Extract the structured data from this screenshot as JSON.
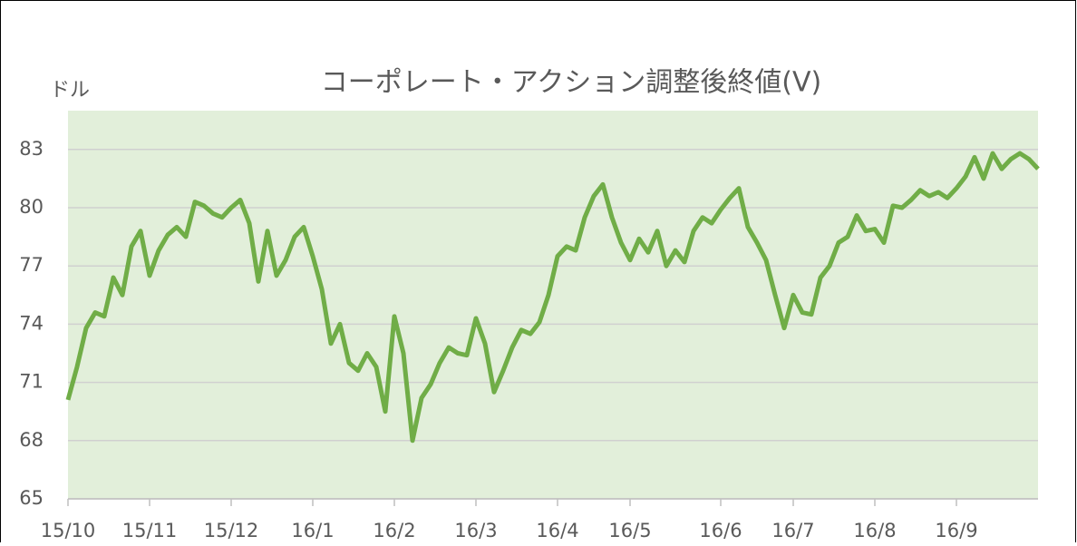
{
  "chart_data": {
    "type": "line",
    "title": "コーポレート・アクション調整後終値(V)",
    "ylabel": "ドル",
    "categories": [
      "15/10",
      null,
      null,
      null,
      null,
      null,
      null,
      null,
      null,
      "15/11",
      null,
      null,
      null,
      null,
      null,
      null,
      null,
      null,
      "15/12",
      null,
      null,
      null,
      null,
      null,
      null,
      null,
      null,
      "16/1",
      null,
      null,
      null,
      null,
      null,
      null,
      null,
      null,
      "16/2",
      null,
      null,
      null,
      null,
      null,
      null,
      null,
      null,
      "16/3",
      null,
      null,
      null,
      null,
      null,
      null,
      null,
      null,
      "16/4",
      null,
      null,
      null,
      null,
      null,
      null,
      null,
      "16/5",
      null,
      null,
      null,
      null,
      null,
      null,
      null,
      null,
      null,
      "16/6",
      null,
      null,
      null,
      null,
      null,
      null,
      null,
      "16/7",
      null,
      null,
      null,
      null,
      null,
      null,
      null,
      null,
      "16/8",
      null,
      null,
      null,
      null,
      null,
      null,
      null,
      null,
      "16/9",
      null,
      null,
      null,
      null,
      null,
      null,
      null,
      null,
      null
    ],
    "series": [
      {
        "name": "V",
        "color": "#70ad47",
        "values": [
          70.1,
          71.8,
          73.8,
          74.6,
          74.4,
          76.4,
          75.5,
          78.0,
          78.8,
          76.5,
          77.8,
          78.6,
          79.0,
          78.5,
          80.3,
          80.1,
          79.7,
          79.5,
          80.0,
          80.4,
          79.2,
          76.2,
          78.8,
          76.5,
          77.3,
          78.5,
          79.0,
          77.5,
          75.8,
          73.0,
          74.0,
          72.0,
          71.6,
          72.5,
          71.8,
          69.5,
          74.4,
          72.5,
          68.0,
          70.2,
          70.9,
          72.0,
          72.8,
          72.5,
          72.4,
          74.3,
          73.0,
          70.5,
          71.6,
          72.8,
          73.7,
          73.5,
          74.1,
          75.5,
          77.5,
          78.0,
          77.8,
          79.5,
          80.6,
          81.2,
          79.5,
          78.2,
          77.3,
          78.4,
          77.7,
          78.8,
          77.0,
          77.8,
          77.2,
          78.8,
          79.5,
          79.2,
          79.9,
          80.5,
          81.0,
          79.0,
          78.2,
          77.3,
          75.5,
          73.8,
          75.5,
          74.6,
          74.5,
          76.4,
          77.0,
          78.2,
          78.5,
          79.6,
          78.8,
          78.9,
          78.2,
          80.1,
          80.0,
          80.4,
          80.9,
          80.6,
          80.8,
          80.5,
          81.0,
          81.6,
          82.6,
          81.5,
          82.8,
          82.0,
          82.5,
          82.8,
          82.5,
          82.0
        ]
      }
    ],
    "ylim": [
      65,
      85
    ],
    "yticks": [
      65,
      68,
      71,
      74,
      77,
      80,
      83
    ],
    "grid": true,
    "plot_background": "#e2efda"
  }
}
